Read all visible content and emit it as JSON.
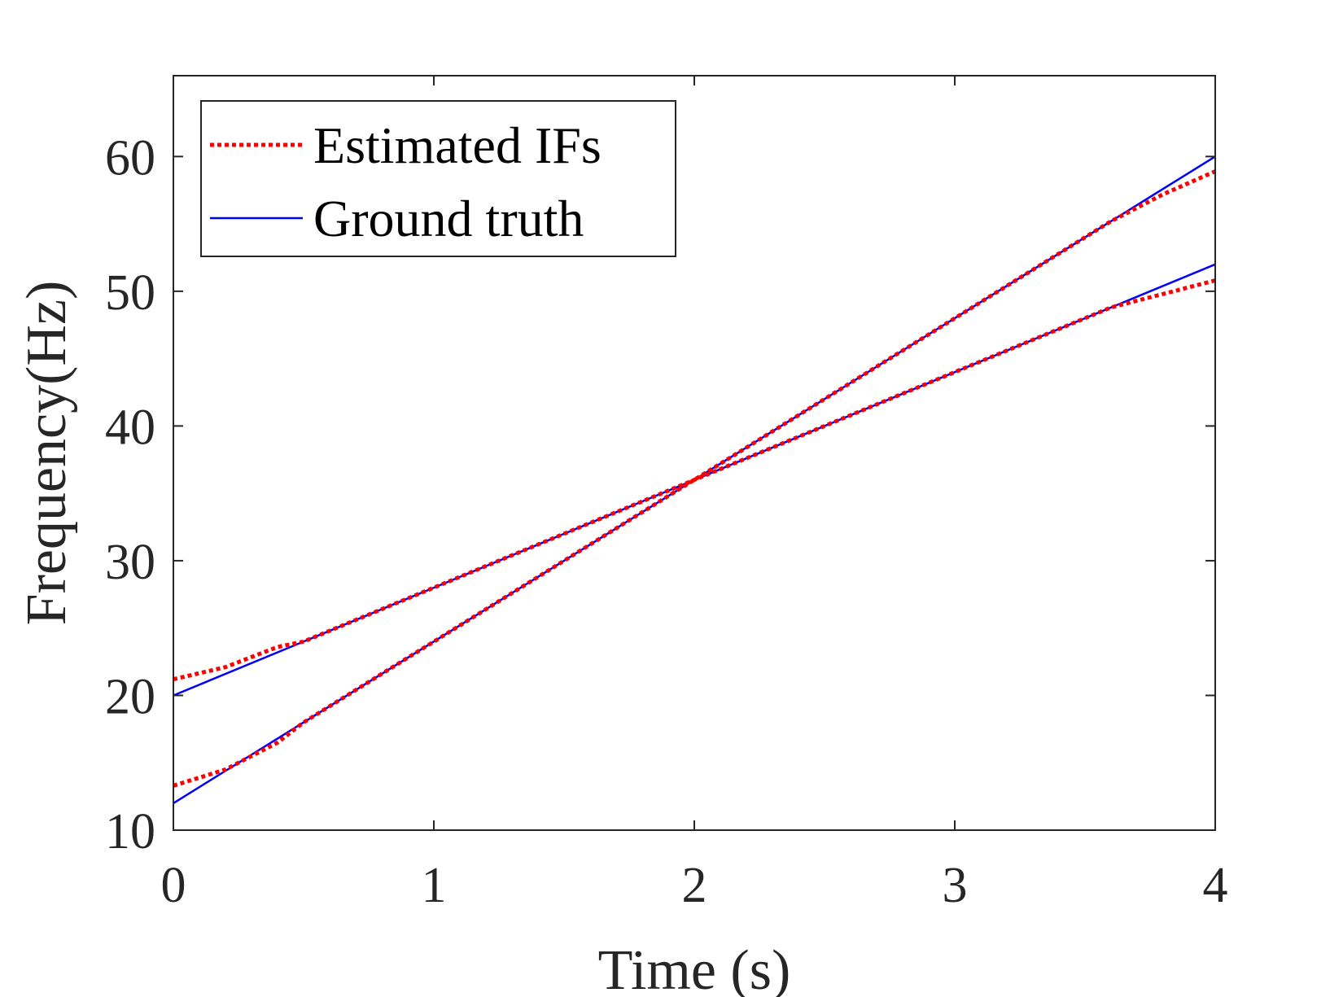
{
  "chart_data": {
    "type": "line",
    "title": "",
    "xlabel": "Time (s)",
    "ylabel": "Frequency(Hz)",
    "xlim": [
      0,
      4
    ],
    "ylim": [
      10,
      66
    ],
    "xticks": [
      0,
      1,
      2,
      3,
      4
    ],
    "yticks": [
      10,
      20,
      30,
      40,
      50,
      60
    ],
    "grid": false,
    "legend_position": "top-left",
    "legend": [
      {
        "label": "Estimated IFs",
        "color": "#ff0000",
        "style": "dotted"
      },
      {
        "label": "Ground truth",
        "color": "#0000ff",
        "style": "solid"
      }
    ],
    "series": [
      {
        "name": "Ground truth",
        "color": "#0000ff",
        "style": "solid",
        "lines": [
          {
            "x": [
              0,
              4
            ],
            "y": [
              12,
              60
            ]
          },
          {
            "x": [
              0,
              4
            ],
            "y": [
              20,
              52
            ]
          }
        ]
      },
      {
        "name": "Estimated IFs",
        "color": "#ff0000",
        "style": "dotted",
        "lines": [
          {
            "x": [
              0,
              0.2,
              0.4,
              0.5,
              1,
              1.5,
              2,
              2.5,
              3,
              3.5,
              3.6,
              3.8,
              4
            ],
            "y": [
              13.3,
              14.5,
              16.5,
              18,
              24,
              30,
              36,
              42,
              48,
              54,
              55.2,
              57.2,
              58.9
            ]
          },
          {
            "x": [
              0,
              0.2,
              0.4,
              0.5,
              1,
              1.5,
              2,
              2.5,
              3,
              3.5,
              3.6,
              3.8,
              4
            ],
            "y": [
              21.2,
              22.1,
              23.6,
              24,
              28,
              32,
              36,
              40,
              44,
              48,
              48.8,
              49.8,
              50.8
            ]
          }
        ]
      }
    ]
  }
}
